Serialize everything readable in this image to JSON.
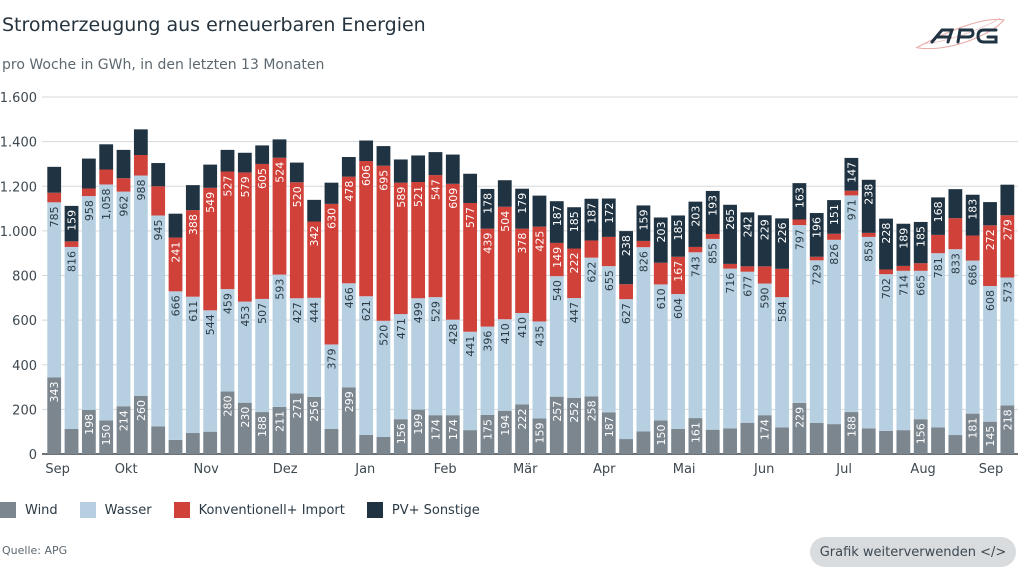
{
  "header": {
    "title": "Stromerzeugung aus erneuerbaren Energien",
    "subtitle": "pro Woche in GWh, in den letzten 13 Monaten",
    "logo_text": "APG"
  },
  "footer": {
    "source": "Quelle: APG",
    "reuse_button": "Grafik weiterverwenden </>"
  },
  "chart_data": {
    "type": "bar",
    "stacked": true,
    "title": "Stromerzeugung aus erneuerbaren Energien",
    "subtitle": "pro Woche in GWh, in den letzten 13 Monaten",
    "ylim": [
      0,
      1600
    ],
    "y_ticks": [
      0,
      200,
      400,
      600,
      800,
      1000,
      1200,
      1400,
      1600
    ],
    "y_tick_labels": [
      "0",
      "200",
      "400",
      "600",
      "800",
      "1.000",
      "1.200",
      "1.400",
      "1.600"
    ],
    "grid": true,
    "legend_position": "bottom-left",
    "week_count": 56,
    "x_month_ticks": [
      {
        "label": "Sep",
        "week": 0.2
      },
      {
        "label": "Okt",
        "week": 4.15
      },
      {
        "label": "Nov",
        "week": 8.77
      },
      {
        "label": "Dez",
        "week": 13.33
      },
      {
        "label": "Jan",
        "week": 17.95
      },
      {
        "label": "Feb",
        "week": 22.56
      },
      {
        "label": "Mär",
        "week": 27.18
      },
      {
        "label": "Apr",
        "week": 31.74
      },
      {
        "label": "Mai",
        "week": 36.35
      },
      {
        "label": "Jun",
        "week": 40.97
      },
      {
        "label": "Jul",
        "week": 45.58
      },
      {
        "label": "Aug",
        "week": 50.14
      },
      {
        "label": "Sep",
        "week": 54.06
      }
    ],
    "series": [
      {
        "name": "Wind",
        "color": "#7b868f",
        "label_color": "#ffffff",
        "values": [
          343,
          112,
          198,
          150,
          214,
          260,
          124,
          63,
          94,
          100,
          280,
          230,
          188,
          211,
          271,
          256,
          112,
          299,
          86,
          77,
          156,
          199,
          174,
          174,
          107,
          175,
          194,
          222,
          159,
          257,
          252,
          258,
          187,
          67,
          101,
          150,
          113,
          161,
          109,
          115,
          140,
          174,
          119,
          229,
          139,
          134,
          188,
          115,
          104,
          107,
          156,
          119,
          85,
          181,
          145,
          218
        ],
        "labeled_weeks": [
          0,
          2,
          3,
          4,
          5,
          10,
          11,
          12,
          13,
          14,
          15,
          17,
          20,
          21,
          22,
          23,
          25,
          26,
          27,
          28,
          29,
          30,
          31,
          32,
          35,
          37,
          41,
          43,
          46,
          50,
          53,
          54,
          55
        ]
      },
      {
        "name": "Wasser",
        "color": "#b6d0e2",
        "label_color": "#2b3a44",
        "values": [
          785,
          816,
          958,
          1058,
          962,
          988,
          945,
          666,
          611,
          544,
          459,
          453,
          507,
          593,
          427,
          444,
          379,
          466,
          621,
          520,
          471,
          499,
          529,
          428,
          441,
          396,
          410,
          410,
          435,
          540,
          447,
          622,
          655,
          627,
          826,
          610,
          604,
          743,
          855,
          716,
          677,
          590,
          584,
          797,
          729,
          826,
          971,
          858,
          702,
          714,
          665,
          781,
          833,
          686,
          608,
          573
        ],
        "labeled_weeks": "all"
      },
      {
        "name": "Konventionell+ Import",
        "color": "#d0413a",
        "label_color": "#ffffff",
        "values": [
          43,
          25,
          34,
          67,
          60,
          92,
          131,
          241,
          388,
          549,
          527,
          579,
          605,
          524,
          520,
          342,
          630,
          478,
          606,
          695,
          589,
          521,
          547,
          609,
          577,
          439,
          504,
          378,
          425,
          149,
          222,
          77,
          131,
          67,
          28,
          97,
          167,
          24,
          22,
          21,
          24,
          77,
          127,
          25,
          16,
          27,
          21,
          18,
          21,
          22,
          34,
          82,
          139,
          112,
          272,
          279
        ],
        "labeled_weeks": [
          7,
          8,
          9,
          10,
          11,
          12,
          13,
          14,
          15,
          16,
          17,
          18,
          19,
          20,
          21,
          22,
          23,
          24,
          25,
          26,
          27,
          28,
          29,
          30,
          36,
          54,
          55
        ]
      },
      {
        "name": "PV+ Sonstige",
        "color": "#1f3342",
        "label_color": "#ffffff",
        "values": [
          116,
          159,
          134,
          113,
          127,
          115,
          104,
          107,
          112,
          104,
          97,
          88,
          83,
          82,
          88,
          97,
          95,
          88,
          92,
          88,
          104,
          119,
          103,
          131,
          131,
          178,
          119,
          179,
          139,
          187,
          185,
          187,
          172,
          238,
          159,
          203,
          185,
          203,
          193,
          265,
          242,
          229,
          226,
          163,
          196,
          151,
          147,
          238,
          228,
          189,
          185,
          168,
          130,
          183,
          104,
          137
        ],
        "labeled_weeks": [
          1,
          25,
          27,
          29,
          30,
          31,
          32,
          33,
          34,
          35,
          36,
          37,
          38,
          39,
          40,
          41,
          42,
          43,
          44,
          45,
          46,
          47,
          48,
          49,
          50,
          51,
          53
        ]
      }
    ]
  }
}
